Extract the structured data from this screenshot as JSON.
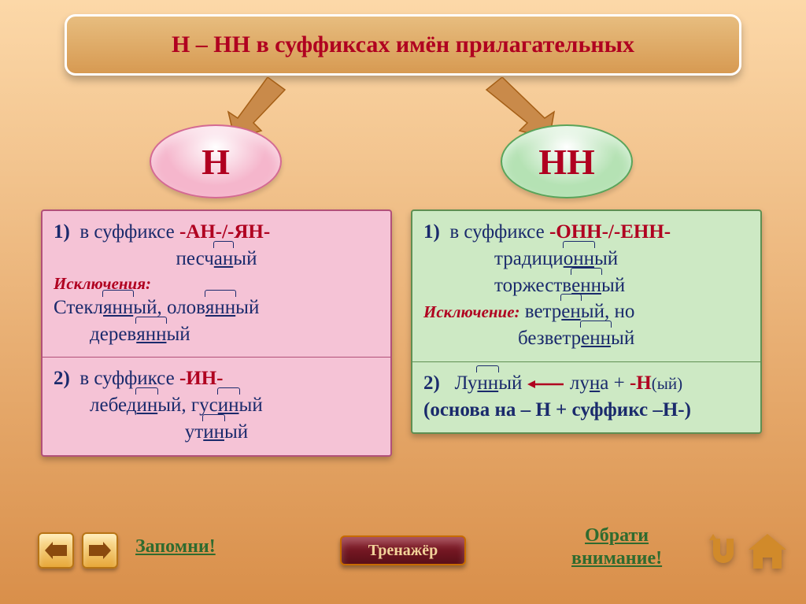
{
  "background": {
    "top": "#fcd8a8",
    "bottom": "#d98f4a"
  },
  "title": {
    "text": "Н – НН в суффиксах имён прилагательных",
    "bg_top": "#e7bd7f",
    "bg_bottom": "#d79a52",
    "border": "#ffffff",
    "color": "#b00020",
    "fontsize": 30
  },
  "arrows": {
    "color": "#c98a4a",
    "stroke": "#a55f16"
  },
  "left": {
    "bubble": {
      "text": "Н",
      "bg": "#f5b6cc",
      "border": "#d46a93",
      "color": "#b00020",
      "fontsize": 46
    },
    "panel": {
      "bg": "#f5c3d6",
      "border": "#b25079",
      "text": "#1a2a6c",
      "fontsize": 25
    },
    "rules": [
      {
        "num": "1)",
        "intro": "в суффиксе ",
        "suffix": "-АН-/-ЯН-",
        "suffix_color": "#b00020",
        "example_pre": "песч",
        "example_hat": "ан",
        "example_post": "ый",
        "exc_label": "Исключения:",
        "exc_color": "#b00020",
        "exc_lines": [
          {
            "parts": [
              "Стекл",
              "янн",
              "ый, олов",
              "янн",
              "ый"
            ]
          },
          {
            "parts": [
              "дерев",
              "янн",
              "ый"
            ]
          }
        ]
      },
      {
        "num": "2)",
        "intro": "в суффиксе ",
        "suffix": "-ИН-",
        "suffix_color": "#b00020",
        "ex2": [
          {
            "parts": [
              "лебед",
              "ин",
              "ый, гус",
              "ин",
              "ый"
            ]
          },
          {
            "parts": [
              "ут",
              "ин",
              "ый"
            ]
          }
        ]
      }
    ]
  },
  "right": {
    "bubble": {
      "text": "НН",
      "bg": "#b5e2b4",
      "border": "#5aa45a",
      "color": "#b00020",
      "fontsize": 46
    },
    "panel": {
      "bg": "#cde9c4",
      "border": "#5f8f52",
      "text": "#1a2a6c",
      "fontsize": 25
    },
    "rules": [
      {
        "num": "1)",
        "intro": "в суффиксе ",
        "suffix": "-ОНН-/-ЕНН-",
        "suffix_color": "#b00020",
        "examples": [
          {
            "parts": [
              "традици",
              "онн",
              "ый"
            ]
          },
          {
            "parts": [
              "торжеств",
              "енн",
              "ый"
            ]
          }
        ],
        "exc_label": "Исключение:",
        "exc_color": "#b00020",
        "exc_word": {
          "parts": [
            "ветр",
            "ен",
            "ый, но"
          ]
        },
        "exc_word2": {
          "parts": [
            "безветр",
            "енн",
            "ый"
          ]
        }
      },
      {
        "num": "2)",
        "moon": {
          "w1_parts": [
            "Лу",
            "нн",
            "ый"
          ],
          "w2_parts": [
            "лун",
            "а + "
          ],
          "suffix": "-Н",
          "tail": "(ый)"
        },
        "explain": "(основа на – Н + суффикс –Н-)"
      }
    ]
  },
  "footer": {
    "remember": {
      "text": "Запомни!",
      "color": "#2f6b2f"
    },
    "attention": {
      "line1": "Обрати",
      "line2": "внимание!",
      "color": "#2f6b2f"
    },
    "trainer": {
      "text": "Тренажёр",
      "bg_top": "#8e1f2d",
      "bg_bottom": "#5a0f18",
      "border": "#c76b00",
      "color": "#f2d39a"
    },
    "nav": {
      "bg_top": "#ffe8a8",
      "bg_bottom": "#e7a83a",
      "border": "#b87414",
      "arrow_color": "#8a4a0e"
    },
    "icon_color": "#d18a2a"
  }
}
